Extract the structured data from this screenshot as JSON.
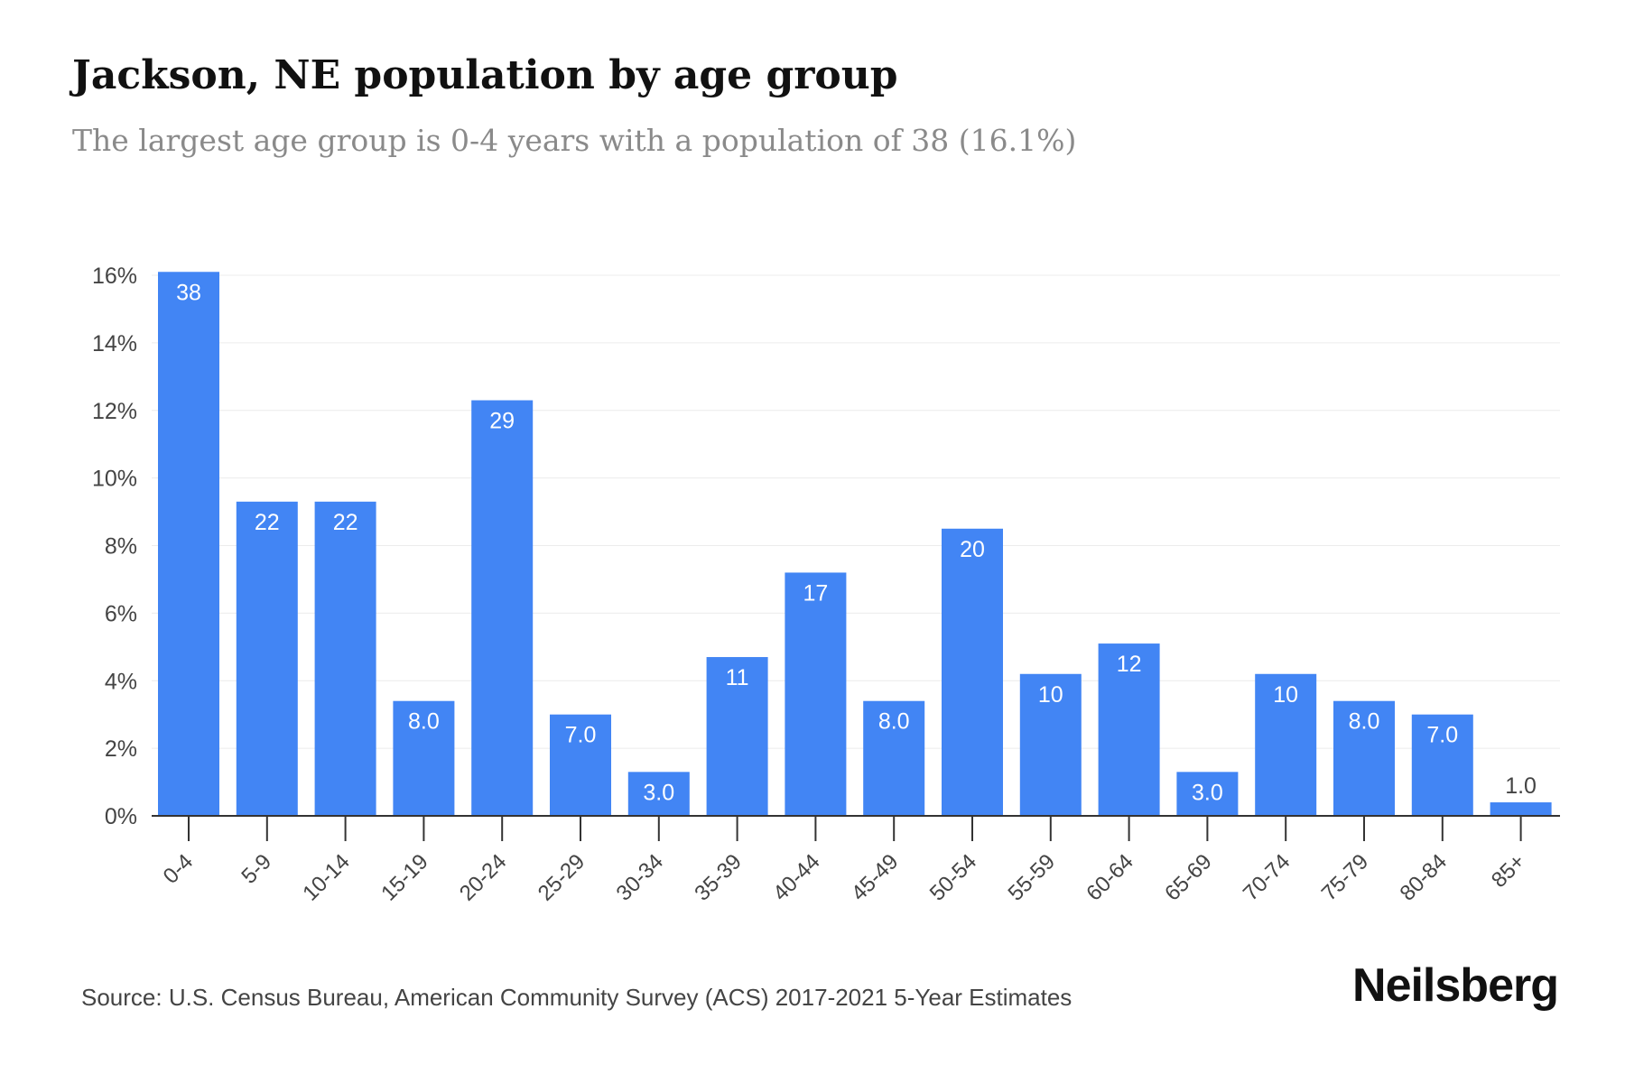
{
  "header": {
    "title": "Jackson, NE population by age group",
    "subtitle": "The largest age group is 0-4 years with a population of 38 (16.1%)"
  },
  "footer": {
    "source": "Source: U.S. Census Bureau, American Community Survey (ACS) 2017-2021 5-Year Estimates",
    "brand": "Neilsberg"
  },
  "colors": {
    "bar": "#4285f4",
    "grid": "#ececec",
    "axis": "#333333",
    "tick_label": "#444444",
    "bar_label_inside": "#ffffff",
    "bar_label_outside": "#444444"
  },
  "chart_data": {
    "type": "bar",
    "title": "Jackson, NE population by age group",
    "xlabel": "",
    "ylabel": "",
    "categories": [
      "0-4",
      "5-9",
      "10-14",
      "15-19",
      "20-24",
      "25-29",
      "30-34",
      "35-39",
      "40-44",
      "45-49",
      "50-54",
      "55-59",
      "60-64",
      "65-69",
      "70-74",
      "75-79",
      "80-84",
      "85+"
    ],
    "values": [
      16.1,
      9.3,
      9.3,
      3.4,
      12.3,
      3.0,
      1.3,
      4.7,
      7.2,
      3.4,
      8.5,
      4.2,
      5.1,
      1.3,
      4.2,
      3.4,
      3.0,
      0.4
    ],
    "value_unit": "% of population",
    "data_labels": [
      "38",
      "22",
      "22",
      "8.0",
      "29",
      "7.0",
      "3.0",
      "11",
      "17",
      "8.0",
      "20",
      "10",
      "12",
      "3.0",
      "10",
      "8.0",
      "7.0",
      "1.0"
    ],
    "ylim": [
      0,
      16
    ],
    "yticks": [
      0,
      2,
      4,
      6,
      8,
      10,
      12,
      14,
      16
    ],
    "ytick_labels": [
      "0%",
      "2%",
      "4%",
      "6%",
      "8%",
      "10%",
      "12%",
      "14%",
      "16%"
    ],
    "grid": true,
    "legend": "none"
  }
}
